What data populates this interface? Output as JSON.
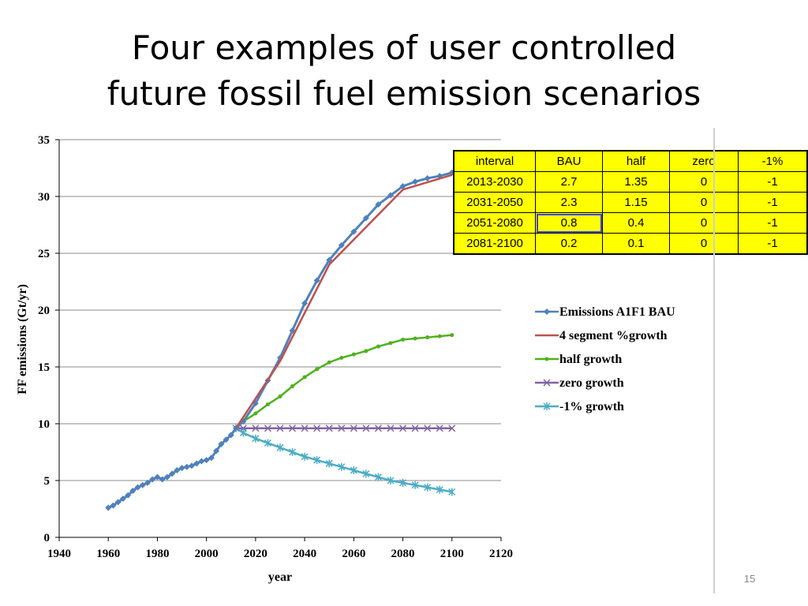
{
  "slide": {
    "title_line1": "Four examples of user controlled",
    "title_line2": "future fossil fuel emission scenarios",
    "page_number": "15"
  },
  "table": {
    "headers": [
      "interval",
      "BAU",
      "half",
      "zero",
      "-1%"
    ],
    "rows": [
      [
        "2013-2030",
        "2.7",
        "1.35",
        "0",
        "-1"
      ],
      [
        "2031-2050",
        "2.3",
        "1.15",
        "0",
        "-1"
      ],
      [
        "2051-2080",
        "0.8",
        "0.4",
        "0",
        "-1"
      ],
      [
        "2081-2100",
        "0.2",
        "0.1",
        "0",
        "-1"
      ]
    ],
    "fill_color": "#ffff00",
    "selected_cell": "2051-2080 / BAU"
  },
  "chart_data": {
    "type": "line",
    "title": "",
    "xlabel": "year",
    "ylabel": "FF emissions (Gt/yr)",
    "xlim": [
      1940,
      2120
    ],
    "ylim": [
      0,
      35
    ],
    "xticks": [
      1940,
      1960,
      1980,
      2000,
      2020,
      2040,
      2060,
      2080,
      2100,
      2120
    ],
    "yticks": [
      0,
      5,
      10,
      15,
      20,
      25,
      30,
      35
    ],
    "grid": "horizontal",
    "legend_position": "right",
    "series": [
      {
        "name": "Emissions A1F1 BAU",
        "color": "#4f81bd",
        "marker": "diamond",
        "x": [
          1960,
          1962,
          1964,
          1966,
          1968,
          1970,
          1972,
          1974,
          1976,
          1978,
          1980,
          1982,
          1984,
          1986,
          1988,
          1990,
          1992,
          1994,
          1996,
          1998,
          2000,
          2002,
          2004,
          2006,
          2008,
          2010,
          2012,
          2015,
          2020,
          2025,
          2030,
          2035,
          2040,
          2045,
          2050,
          2055,
          2060,
          2065,
          2070,
          2075,
          2080,
          2085,
          2090,
          2095,
          2100
        ],
        "y": [
          2.6,
          2.8,
          3.1,
          3.4,
          3.7,
          4.1,
          4.4,
          4.6,
          4.8,
          5.1,
          5.3,
          5.1,
          5.3,
          5.6,
          5.9,
          6.1,
          6.2,
          6.3,
          6.5,
          6.7,
          6.8,
          7.0,
          7.6,
          8.2,
          8.6,
          9.0,
          9.6,
          10.2,
          11.8,
          13.8,
          15.8,
          18.2,
          20.6,
          22.6,
          24.4,
          25.7,
          26.9,
          28.1,
          29.3,
          30.1,
          30.9,
          31.3,
          31.6,
          31.8,
          32.1
        ]
      },
      {
        "name": "4 segment %growth",
        "color": "#c0504d",
        "marker": "none",
        "x": [
          2012,
          2030,
          2050,
          2080,
          2100
        ],
        "y": [
          9.6,
          15.5,
          24.0,
          30.6,
          31.9
        ]
      },
      {
        "name": "half growth",
        "color": "#4eb21b",
        "marker": "dot",
        "x": [
          2012,
          2015,
          2020,
          2025,
          2030,
          2035,
          2040,
          2045,
          2050,
          2055,
          2060,
          2065,
          2070,
          2075,
          2080,
          2085,
          2090,
          2095,
          2100
        ],
        "y": [
          9.6,
          10.2,
          10.9,
          11.7,
          12.4,
          13.3,
          14.1,
          14.8,
          15.4,
          15.8,
          16.1,
          16.4,
          16.8,
          17.1,
          17.4,
          17.5,
          17.6,
          17.7,
          17.8
        ]
      },
      {
        "name": "zero growth",
        "color": "#8064a2",
        "marker": "x",
        "x": [
          2012,
          2015,
          2020,
          2025,
          2030,
          2035,
          2040,
          2045,
          2050,
          2055,
          2060,
          2065,
          2070,
          2075,
          2080,
          2085,
          2090,
          2095,
          2100
        ],
        "y": [
          9.6,
          9.6,
          9.6,
          9.6,
          9.6,
          9.6,
          9.6,
          9.6,
          9.6,
          9.6,
          9.6,
          9.6,
          9.6,
          9.6,
          9.6,
          9.6,
          9.6,
          9.6,
          9.6
        ]
      },
      {
        "name": "-1% growth",
        "color": "#4bacc6",
        "marker": "star",
        "x": [
          2012,
          2015,
          2020,
          2025,
          2030,
          2035,
          2040,
          2045,
          2050,
          2055,
          2060,
          2065,
          2070,
          2075,
          2080,
          2085,
          2090,
          2095,
          2100
        ],
        "y": [
          9.6,
          9.2,
          8.7,
          8.3,
          7.9,
          7.5,
          7.1,
          6.8,
          6.5,
          6.2,
          5.9,
          5.6,
          5.3,
          5.0,
          4.8,
          4.6,
          4.4,
          4.2,
          4.0
        ]
      }
    ]
  }
}
